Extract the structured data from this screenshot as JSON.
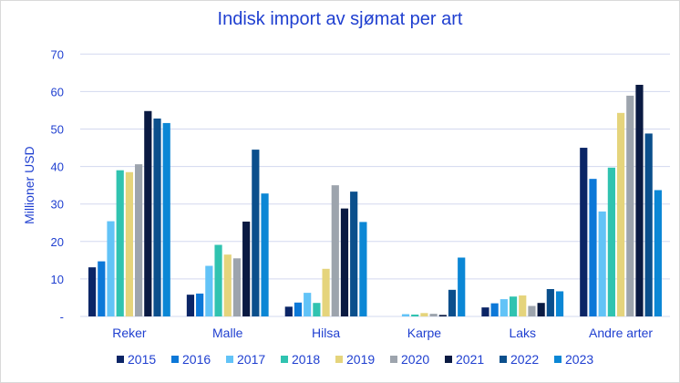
{
  "chart_data": {
    "type": "bar",
    "title": "Indisk import av sjømat per art",
    "xlabel": "",
    "ylabel": "Millioner USD",
    "ylim": [
      0,
      70
    ],
    "yticks": [
      0,
      10,
      20,
      30,
      40,
      50,
      60,
      70
    ],
    "ytick_labels": [
      "-",
      "10",
      "20",
      "30",
      "40",
      "50",
      "60",
      "70"
    ],
    "grid": true,
    "legend": "bottom",
    "categories": [
      "Reker",
      "Malle",
      "Hilsa",
      "Karpe",
      "Laks",
      "Andre arter"
    ],
    "series": [
      {
        "name": "2015",
        "color": "#0b2566",
        "values": [
          13.1,
          5.8,
          2.6,
          0,
          2.4,
          45.0
        ]
      },
      {
        "name": "2016",
        "color": "#0c78d8",
        "values": [
          14.7,
          6.1,
          3.7,
          0,
          3.5,
          36.7
        ]
      },
      {
        "name": "2017",
        "color": "#62c3f7",
        "values": [
          25.4,
          13.5,
          6.3,
          0.6,
          4.6,
          28.0
        ]
      },
      {
        "name": "2018",
        "color": "#30c3b0",
        "values": [
          39.0,
          19.1,
          3.6,
          0.5,
          5.3,
          39.7
        ]
      },
      {
        "name": "2019",
        "color": "#e5d47c",
        "values": [
          38.5,
          16.5,
          12.7,
          0.9,
          5.6,
          54.3
        ]
      },
      {
        "name": "2020",
        "color": "#9da4ad",
        "values": [
          40.6,
          15.5,
          35.0,
          0.7,
          2.8,
          58.9
        ]
      },
      {
        "name": "2021",
        "color": "#0a1a42",
        "values": [
          54.8,
          25.3,
          28.8,
          0.4,
          3.6,
          61.8
        ]
      },
      {
        "name": "2022",
        "color": "#0b4f8c",
        "values": [
          52.8,
          44.5,
          33.3,
          7.1,
          7.3,
          48.8
        ]
      },
      {
        "name": "2023",
        "color": "#0b87d5",
        "values": [
          51.6,
          32.8,
          25.2,
          15.7,
          6.7,
          33.7
        ]
      }
    ]
  }
}
